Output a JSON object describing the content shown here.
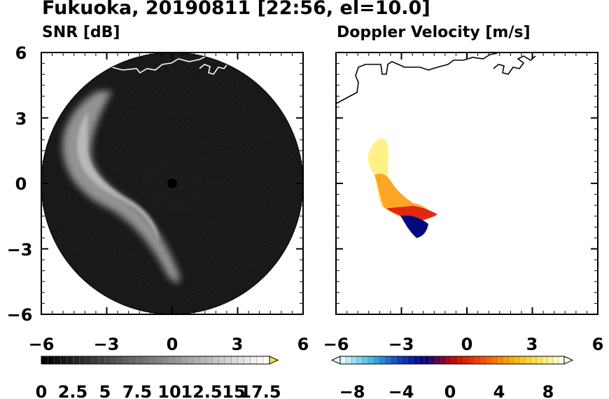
{
  "figure": {
    "title": "Fukuoka, 20190811 [22:56, el=10.0]"
  },
  "chart_data": [
    {
      "type": "heatmap",
      "title": "SNR [dB]",
      "xlim": [
        -6,
        6
      ],
      "ylim": [
        -6,
        6
      ],
      "xticks": [
        "−6",
        "−3",
        "0",
        "3",
        "6"
      ],
      "yticks": [
        "6",
        "3",
        "0",
        "−3",
        "−6"
      ],
      "colorbar": {
        "range": [
          0,
          18
        ],
        "levels": 36,
        "colormap": [
          "#000000",
          "#ffffff"
        ],
        "extend": "max",
        "extend_color": "#e8e84a",
        "tick_labels": [
          "0",
          "2.5",
          "5",
          "7.5",
          "10",
          "12.5",
          "15",
          "17.5"
        ]
      },
      "features": {
        "scan_area": "circle radius 6",
        "echo_band": "bright arc from upper-left toward lower-center",
        "coastline_color": "#ffffff"
      }
    },
    {
      "type": "heatmap",
      "title": "Doppler Velocity [m/s]",
      "xlim": [
        -6,
        6
      ],
      "ylim": [
        -6,
        6
      ],
      "xticks": [
        "−6",
        "−3",
        "0",
        "3",
        "6"
      ],
      "yticks": [
        "6",
        "3",
        "0",
        "−3",
        "−6"
      ],
      "colorbar": {
        "range": [
          -10,
          10
        ],
        "levels": 40,
        "colormap": [
          "#e0f8ff",
          "#40c0e8",
          "#1040c0",
          "#000080",
          "#c00000",
          "#ff4000",
          "#ffa000",
          "#ffe040",
          "#ffffe0"
        ],
        "extend": "both",
        "tick_labels": [
          "−8",
          "−4",
          "0",
          "4",
          "8"
        ]
      },
      "features": {
        "coastline_color": "#000000",
        "echo_regions": "yellow upper echo, orange/red middle, dark blue lower"
      }
    }
  ]
}
